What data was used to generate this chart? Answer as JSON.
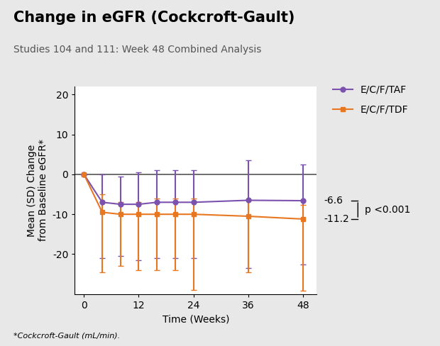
{
  "title": "Change in eGFR (Cockcroft-Gault)",
  "subtitle": "Studies 104 and 111: Week 48 Combined Analysis",
  "footnote": "*Cockcroft-Gault (mL/min).",
  "xlabel": "Time (Weeks)",
  "ylabel": "Mean (SD) Change\nfrom Baseline eGFR*",
  "ylim": [
    -30,
    22
  ],
  "yticks": [
    -20,
    -10,
    0,
    10,
    20
  ],
  "xticks": [
    0,
    12,
    24,
    36,
    48
  ],
  "background_color": "#e8e8e8",
  "plot_bg": "#ffffff",
  "header_bar_color": "#777777",
  "header_red_color": "#cc0000",
  "taf": {
    "label": "E/C/F/TAF",
    "color": "#7B52AE",
    "marker": "o",
    "x": [
      0,
      4,
      8,
      12,
      16,
      20,
      24,
      36,
      48
    ],
    "mean": [
      0,
      -7,
      -7.5,
      -7.5,
      -7,
      -7,
      -7,
      -6.5,
      -6.6
    ],
    "err_up": [
      0,
      7,
      7,
      8,
      8,
      8,
      8,
      10,
      9
    ],
    "err_down": [
      0,
      14,
      13,
      14,
      14,
      14,
      14,
      17,
      16
    ]
  },
  "tdf": {
    "label": "E/C/F/TDF",
    "color": "#E87722",
    "marker": "s",
    "x": [
      0,
      4,
      8,
      12,
      16,
      20,
      24,
      36,
      48
    ],
    "mean": [
      0,
      -9.5,
      -10,
      -10,
      -10,
      -10,
      -10,
      -10.5,
      -11.2
    ],
    "err_up": [
      0,
      4.5,
      3,
      3,
      4,
      4,
      4,
      4,
      3.5
    ],
    "err_down": [
      0,
      15,
      13,
      14,
      14,
      14,
      19,
      14,
      18
    ]
  },
  "annotation_taf_val": "-6.6",
  "annotation_tdf_val": "-11.2",
  "annotation_pval": "p <0.001",
  "hline_y": 0,
  "hline_color": "#555555",
  "title_fontsize": 15,
  "subtitle_fontsize": 10,
  "axis_label_fontsize": 10,
  "tick_fontsize": 10,
  "legend_fontsize": 10,
  "annot_fontsize": 10,
  "footnote_fontsize": 8
}
